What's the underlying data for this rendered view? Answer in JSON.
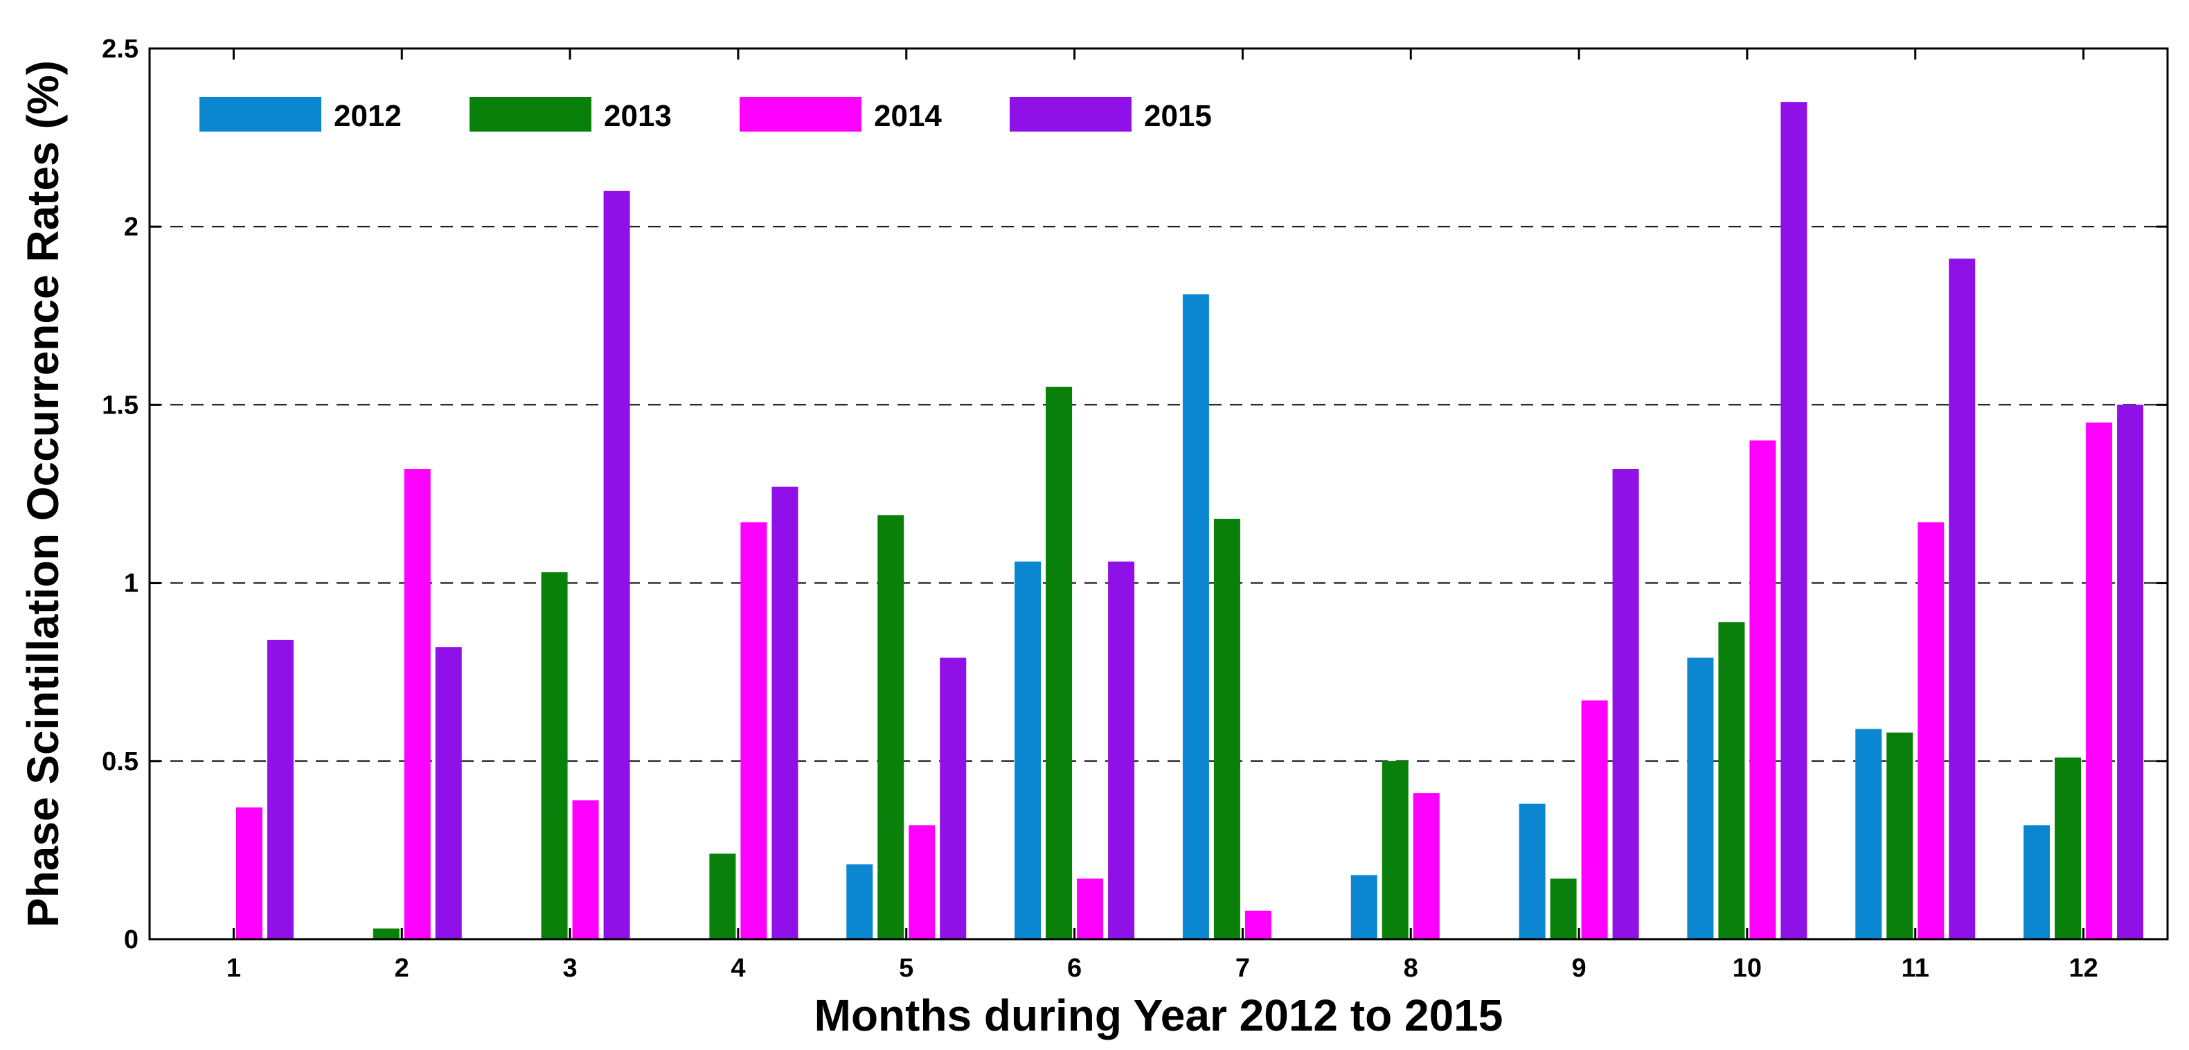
{
  "chart_data": {
    "type": "bar",
    "title": "",
    "xlabel": "Months during Year 2012 to 2015",
    "ylabel": "Phase Scintillation Occurrence Rates (%)",
    "categories": [
      "1",
      "2",
      "3",
      "4",
      "5",
      "6",
      "7",
      "8",
      "9",
      "10",
      "11",
      "12"
    ],
    "ylim": [
      0,
      2.5
    ],
    "yticks": [
      "0",
      "0.5",
      "1",
      "1.5",
      "2",
      "2.5"
    ],
    "grid": "horizontal dashed",
    "legend_position": "top-left",
    "series": [
      {
        "name": "2012",
        "color": "#0a87d0",
        "values": [
          0,
          0,
          0,
          0,
          0.21,
          1.06,
          1.81,
          0.18,
          0.38,
          0.79,
          0.59,
          0.32
        ]
      },
      {
        "name": "2013",
        "color": "#08800a",
        "values": [
          0,
          0.03,
          1.03,
          0.24,
          1.19,
          1.55,
          1.18,
          0.5,
          0.17,
          0.89,
          0.58,
          0.51
        ]
      },
      {
        "name": "2014",
        "color": "#ff00ff",
        "values": [
          0.37,
          1.32,
          0.39,
          1.17,
          0.32,
          0.17,
          0.08,
          0.41,
          0.67,
          1.4,
          1.17,
          1.45
        ]
      },
      {
        "name": "2015",
        "color": "#9010e8",
        "values": [
          0.84,
          0.82,
          2.1,
          1.27,
          0.79,
          1.06,
          0,
          0,
          1.32,
          2.35,
          1.91,
          1.5
        ]
      }
    ]
  }
}
